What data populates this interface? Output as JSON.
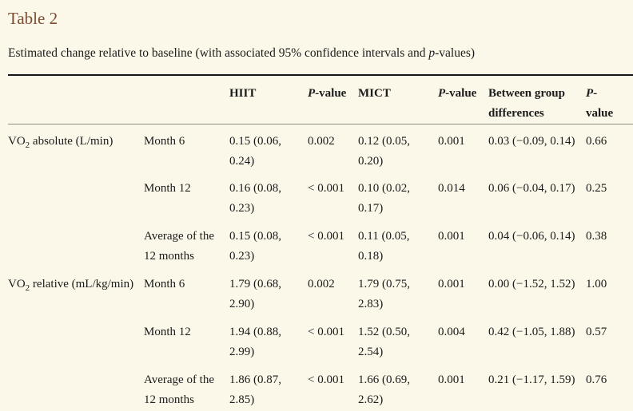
{
  "page": {
    "title": "Table 2",
    "caption": {
      "before": "Estimated change relative to baseline (with associated 95% confidence intervals and ",
      "italic": "p",
      "after": "-values)"
    }
  },
  "colors": {
    "background": "#fbf8e9",
    "title": "#7d4b33",
    "text": "#1b1b1b",
    "top_rule": "#161616",
    "header_rule": "#8c8c80"
  },
  "table": {
    "header": {
      "hiit": "HIIT",
      "mict": "MICT",
      "between": "Between group differences",
      "p_italic": "P",
      "p_rest": "-value"
    },
    "groups": [
      {
        "pre": "VO",
        "sub": "2",
        "post": " absolute (L/min)"
      },
      {
        "pre": "VO",
        "sub": "2",
        "post": " relative (mL/kg/min)"
      }
    ],
    "rows": [
      {
        "period": "Month 6",
        "hiit": "0.15 (0.06, 0.24)",
        "hiit_p": "0.002",
        "mict": "0.12 (0.05, 0.20)",
        "mict_p": "0.001",
        "diff": "0.03 (−0.09, 0.14)",
        "diff_p": "0.66"
      },
      {
        "period": "Month 12",
        "hiit": "0.16 (0.08, 0.23)",
        "hiit_p": "< 0.001",
        "mict": "0.10 (0.02, 0.17)",
        "mict_p": "0.014",
        "diff": "0.06 (−0.04, 0.17)",
        "diff_p": "0.25"
      },
      {
        "period": "Average of the 12 months",
        "hiit": "0.15 (0.08, 0.23)",
        "hiit_p": "< 0.001",
        "mict": "0.11 (0.05, 0.18)",
        "mict_p": "0.001",
        "diff": "0.04 (−0.06, 0.14)",
        "diff_p": "0.38"
      },
      {
        "period": "Month 6",
        "hiit": "1.79 (0.68, 2.90)",
        "hiit_p": "0.002",
        "mict": "1.79 (0.75, 2.83)",
        "mict_p": "0.001",
        "diff": "0.00 (−1.52, 1.52)",
        "diff_p": "1.00"
      },
      {
        "period": "Month 12",
        "hiit": "1.94 (0.88, 2.99)",
        "hiit_p": "< 0.001",
        "mict": "1.52 (0.50, 2.54)",
        "mict_p": "0.004",
        "diff": "0.42 (−1.05, 1.88)",
        "diff_p": "0.57"
      },
      {
        "period": "Average of the 12 months",
        "hiit": "1.86 (0.87, 2.85)",
        "hiit_p": "< 0.001",
        "mict": "1.66 (0.69, 2.62)",
        "mict_p": "0.001",
        "diff": "0.21 (−1.17, 1.59)",
        "diff_p": "0.76"
      }
    ]
  }
}
